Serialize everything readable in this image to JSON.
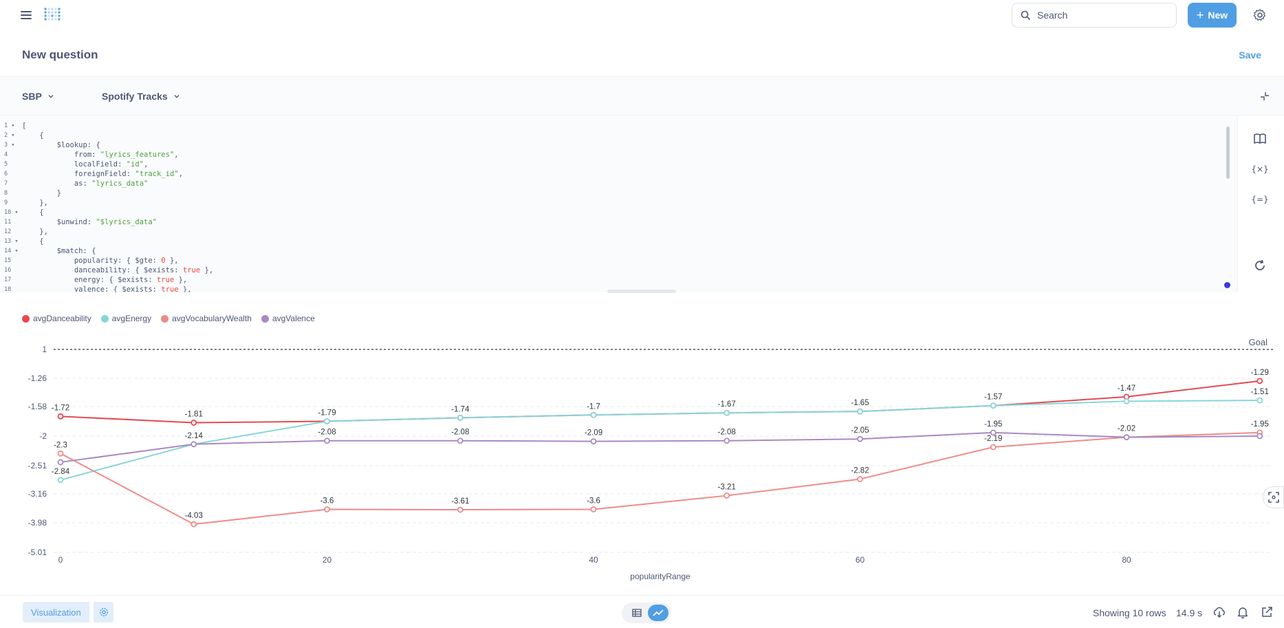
{
  "search": {
    "placeholder": "Search"
  },
  "header": {
    "new_label": "New",
    "title": "New question",
    "save_label": "Save"
  },
  "datasource": {
    "database": "SBP",
    "collection": "Spotify Tracks"
  },
  "editor": {
    "line_numbers": [
      "1",
      "2",
      "3",
      "4",
      "5",
      "6",
      "7",
      "8",
      "9",
      "10",
      "11",
      "12",
      "13",
      "14",
      "15",
      "16",
      "17",
      "18"
    ],
    "fold_lines": [
      1,
      2,
      3,
      10,
      13,
      14
    ]
  },
  "legend": [
    {
      "name": "avgDanceability",
      "color": "#e9484f"
    },
    {
      "name": "avgEnergy",
      "color": "#88d6d8"
    },
    {
      "name": "avgVocabularyWealth",
      "color": "#ef8b87"
    },
    {
      "name": "avgValence",
      "color": "#a989c5"
    }
  ],
  "chart_data": {
    "type": "line",
    "xlabel": "popularityRange",
    "x": [
      0,
      10,
      20,
      30,
      40,
      50,
      60,
      70,
      80,
      90
    ],
    "x_ticks": [
      "0",
      "20",
      "40",
      "60",
      "80"
    ],
    "y_ticks": [
      "1",
      "-1.26",
      "-1.58",
      "-2",
      "-2.51",
      "-3.16",
      "-3.98",
      "-5.01"
    ],
    "y_tick_values": [
      1,
      -1.26,
      -1.58,
      -2,
      -2.51,
      -3.16,
      -3.98,
      -5.01
    ],
    "goal": {
      "label": "Goal",
      "value": 1
    },
    "series": [
      {
        "name": "avgDanceability",
        "color": "#e9484f",
        "values": [
          -1.72,
          -1.81,
          -1.79,
          -1.74,
          -1.7,
          -1.67,
          -1.65,
          -1.57,
          -1.47,
          -1.29
        ],
        "labels": [
          "-1.72",
          "-1.81",
          "",
          "",
          "",
          "",
          "",
          "",
          "-1.47",
          "-1.29"
        ]
      },
      {
        "name": "avgEnergy",
        "color": "#88d6d8",
        "values": [
          -2.84,
          -2.14,
          -1.79,
          -1.74,
          -1.7,
          -1.67,
          -1.65,
          -1.57,
          -1.52,
          -1.51
        ],
        "labels": [
          "-2.84",
          "-2.14",
          "-1.79",
          "-1.74",
          "-1.7",
          "-1.67",
          "-1.65",
          "-1.57",
          "",
          "-1.51"
        ]
      },
      {
        "name": "avgVocabularyWealth",
        "color": "#ef8b87",
        "values": [
          -2.3,
          -4.03,
          -3.6,
          -3.61,
          -3.6,
          -3.21,
          -2.82,
          -2.19,
          -2.02,
          -1.95
        ],
        "labels": [
          "-2.3",
          "-4.03",
          "-3.6",
          "-3.61",
          "-3.6",
          "-3.21",
          "-2.82",
          "-2.19",
          "",
          "-1.95"
        ]
      },
      {
        "name": "avgValence",
        "color": "#a989c5",
        "values": [
          -2.45,
          -2.14,
          -2.08,
          -2.08,
          -2.09,
          -2.08,
          -2.05,
          -1.95,
          -2.02,
          -2.0
        ],
        "labels": [
          "",
          "",
          "-2.08",
          "-2.08",
          "-2.09",
          "-2.08",
          "-2.05",
          "-1.95",
          "-2.02",
          ""
        ]
      }
    ]
  },
  "footer": {
    "viz_label": "Visualization",
    "rows_label": "Showing 10 rows",
    "time_label": "14.9 s"
  }
}
